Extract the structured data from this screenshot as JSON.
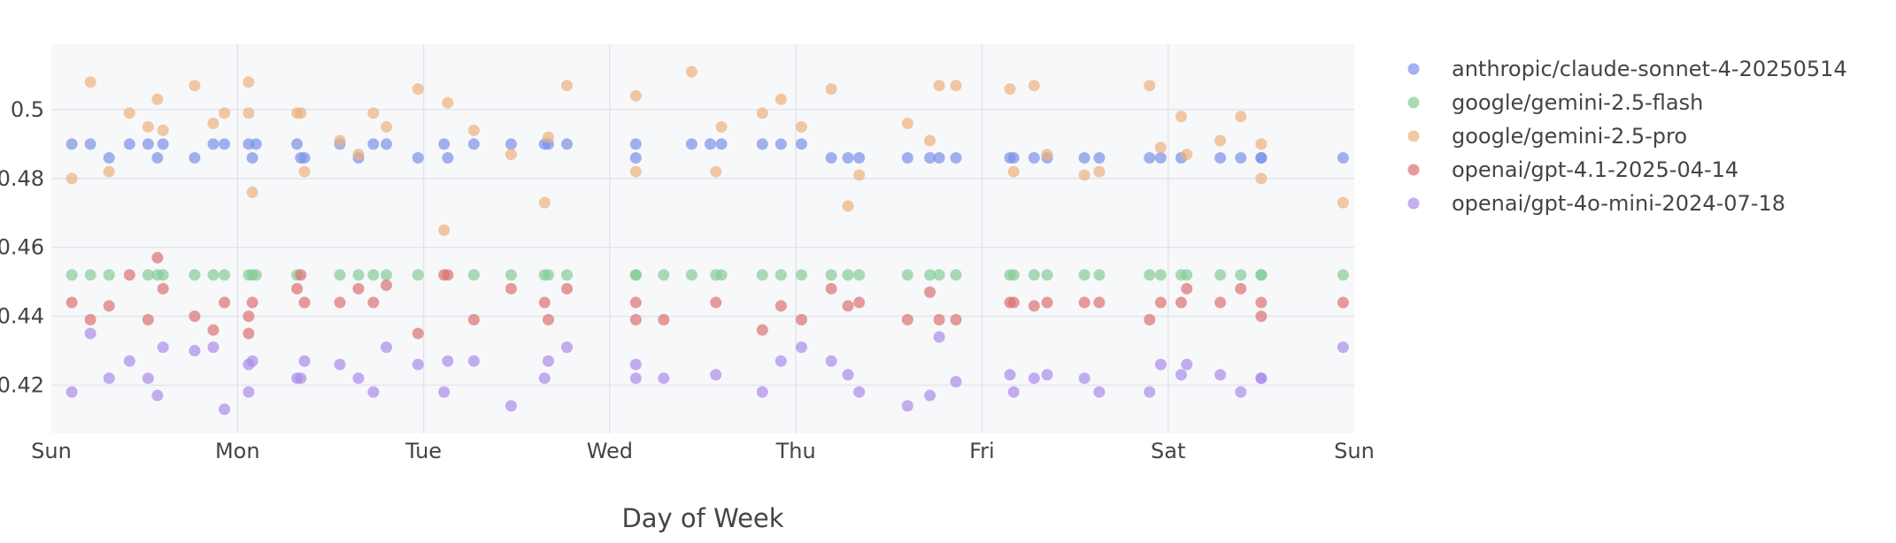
{
  "chart_data": {
    "type": "scatter",
    "xlabel": "Day of Week",
    "ylabel": "",
    "x_tick_labels": [
      "Sun",
      "Mon",
      "Tue",
      "Wed",
      "Thu",
      "Fri",
      "Sat",
      "Sun"
    ],
    "x_range": [
      0,
      7
    ],
    "y_ticks": [
      0.42,
      0.44,
      0.46,
      0.48,
      0.5
    ],
    "y_range": [
      0.406,
      0.519
    ],
    "grid": true,
    "legend_position": "right",
    "series": [
      {
        "name": "anthropic/claude-sonnet-4-20250514",
        "color": "#7b92ea",
        "points": [
          [
            0.11,
            0.49
          ],
          [
            0.21,
            0.49
          ],
          [
            0.31,
            0.486
          ],
          [
            0.42,
            0.49
          ],
          [
            0.52,
            0.49
          ],
          [
            0.57,
            0.486
          ],
          [
            0.6,
            0.49
          ],
          [
            0.77,
            0.486
          ],
          [
            0.87,
            0.49
          ],
          [
            0.93,
            0.49
          ],
          [
            1.06,
            0.49
          ],
          [
            1.08,
            0.486
          ],
          [
            1.1,
            0.49
          ],
          [
            1.32,
            0.49
          ],
          [
            1.34,
            0.486
          ],
          [
            1.36,
            0.486
          ],
          [
            1.55,
            0.49
          ],
          [
            1.65,
            0.486
          ],
          [
            1.73,
            0.49
          ],
          [
            1.8,
            0.49
          ],
          [
            1.97,
            0.486
          ],
          [
            2.11,
            0.49
          ],
          [
            2.13,
            0.486
          ],
          [
            2.27,
            0.49
          ],
          [
            2.47,
            0.49
          ],
          [
            2.65,
            0.49
          ],
          [
            2.67,
            0.49
          ],
          [
            2.77,
            0.49
          ],
          [
            3.14,
            0.486
          ],
          [
            3.14,
            0.49
          ],
          [
            3.44,
            0.49
          ],
          [
            3.54,
            0.49
          ],
          [
            3.6,
            0.49
          ],
          [
            3.82,
            0.49
          ],
          [
            3.92,
            0.49
          ],
          [
            4.03,
            0.49
          ],
          [
            4.19,
            0.486
          ],
          [
            4.28,
            0.486
          ],
          [
            4.34,
            0.486
          ],
          [
            4.6,
            0.486
          ],
          [
            4.72,
            0.486
          ],
          [
            4.77,
            0.486
          ],
          [
            4.86,
            0.486
          ],
          [
            5.15,
            0.486
          ],
          [
            5.17,
            0.486
          ],
          [
            5.28,
            0.486
          ],
          [
            5.35,
            0.486
          ],
          [
            5.55,
            0.486
          ],
          [
            5.63,
            0.486
          ],
          [
            5.9,
            0.486
          ],
          [
            5.96,
            0.486
          ],
          [
            6.07,
            0.486
          ],
          [
            6.28,
            0.486
          ],
          [
            6.39,
            0.486
          ],
          [
            6.5,
            0.486
          ],
          [
            6.5,
            0.486
          ],
          [
            6.94,
            0.486
          ]
        ]
      },
      {
        "name": "google/gemini-2.5-flash",
        "color": "#86cc96",
        "points": [
          [
            0.11,
            0.452
          ],
          [
            0.21,
            0.452
          ],
          [
            0.31,
            0.452
          ],
          [
            0.52,
            0.452
          ],
          [
            0.57,
            0.452
          ],
          [
            0.6,
            0.452
          ],
          [
            0.77,
            0.452
          ],
          [
            0.87,
            0.452
          ],
          [
            0.93,
            0.452
          ],
          [
            1.06,
            0.452
          ],
          [
            1.08,
            0.452
          ],
          [
            1.1,
            0.452
          ],
          [
            1.32,
            0.452
          ],
          [
            1.55,
            0.452
          ],
          [
            1.65,
            0.452
          ],
          [
            1.73,
            0.452
          ],
          [
            1.8,
            0.452
          ],
          [
            1.97,
            0.452
          ],
          [
            2.27,
            0.452
          ],
          [
            2.47,
            0.452
          ],
          [
            2.65,
            0.452
          ],
          [
            2.67,
            0.452
          ],
          [
            2.77,
            0.452
          ],
          [
            3.14,
            0.452
          ],
          [
            3.14,
            0.452
          ],
          [
            3.29,
            0.452
          ],
          [
            3.44,
            0.452
          ],
          [
            3.57,
            0.452
          ],
          [
            3.6,
            0.452
          ],
          [
            3.82,
            0.452
          ],
          [
            3.92,
            0.452
          ],
          [
            4.03,
            0.452
          ],
          [
            4.19,
            0.452
          ],
          [
            4.28,
            0.452
          ],
          [
            4.34,
            0.452
          ],
          [
            4.6,
            0.452
          ],
          [
            4.72,
            0.452
          ],
          [
            4.77,
            0.452
          ],
          [
            4.86,
            0.452
          ],
          [
            5.15,
            0.452
          ],
          [
            5.17,
            0.452
          ],
          [
            5.28,
            0.452
          ],
          [
            5.35,
            0.452
          ],
          [
            5.55,
            0.452
          ],
          [
            5.63,
            0.452
          ],
          [
            5.9,
            0.452
          ],
          [
            5.96,
            0.452
          ],
          [
            6.07,
            0.452
          ],
          [
            6.1,
            0.452
          ],
          [
            6.28,
            0.452
          ],
          [
            6.39,
            0.452
          ],
          [
            6.5,
            0.452
          ],
          [
            6.5,
            0.452
          ],
          [
            6.94,
            0.452
          ]
        ]
      },
      {
        "name": "google/gemini-2.5-pro",
        "color": "#ecb07e",
        "points": [
          [
            0.11,
            0.48
          ],
          [
            0.21,
            0.508
          ],
          [
            0.31,
            0.482
          ],
          [
            0.42,
            0.499
          ],
          [
            0.52,
            0.495
          ],
          [
            0.57,
            0.503
          ],
          [
            0.6,
            0.494
          ],
          [
            0.77,
            0.507
          ],
          [
            0.87,
            0.496
          ],
          [
            0.93,
            0.499
          ],
          [
            1.06,
            0.508
          ],
          [
            1.06,
            0.499
          ],
          [
            1.08,
            0.476
          ],
          [
            1.32,
            0.499
          ],
          [
            1.34,
            0.499
          ],
          [
            1.36,
            0.482
          ],
          [
            1.55,
            0.491
          ],
          [
            1.65,
            0.487
          ],
          [
            1.73,
            0.499
          ],
          [
            1.8,
            0.495
          ],
          [
            1.97,
            0.506
          ],
          [
            2.11,
            0.465
          ],
          [
            2.13,
            0.502
          ],
          [
            2.27,
            0.494
          ],
          [
            2.47,
            0.487
          ],
          [
            2.65,
            0.473
          ],
          [
            2.67,
            0.492
          ],
          [
            2.77,
            0.507
          ],
          [
            3.14,
            0.504
          ],
          [
            3.14,
            0.482
          ],
          [
            3.44,
            0.511
          ],
          [
            3.57,
            0.482
          ],
          [
            3.6,
            0.495
          ],
          [
            3.82,
            0.499
          ],
          [
            3.92,
            0.503
          ],
          [
            4.03,
            0.495
          ],
          [
            4.19,
            0.506
          ],
          [
            4.28,
            0.472
          ],
          [
            4.34,
            0.481
          ],
          [
            4.6,
            0.496
          ],
          [
            4.72,
            0.491
          ],
          [
            4.77,
            0.507
          ],
          [
            4.86,
            0.507
          ],
          [
            5.15,
            0.506
          ],
          [
            5.17,
            0.482
          ],
          [
            5.28,
            0.507
          ],
          [
            5.35,
            0.487
          ],
          [
            5.55,
            0.481
          ],
          [
            5.63,
            0.482
          ],
          [
            5.9,
            0.507
          ],
          [
            5.96,
            0.489
          ],
          [
            6.07,
            0.498
          ],
          [
            6.1,
            0.487
          ],
          [
            6.28,
            0.491
          ],
          [
            6.39,
            0.498
          ],
          [
            6.5,
            0.49
          ],
          [
            6.5,
            0.48
          ],
          [
            6.94,
            0.473
          ]
        ]
      },
      {
        "name": "openai/gpt-4.1-2025-04-14",
        "color": "#dc7070",
        "points": [
          [
            0.11,
            0.444
          ],
          [
            0.21,
            0.439
          ],
          [
            0.31,
            0.443
          ],
          [
            0.42,
            0.452
          ],
          [
            0.52,
            0.439
          ],
          [
            0.57,
            0.457
          ],
          [
            0.6,
            0.448
          ],
          [
            0.77,
            0.44
          ],
          [
            0.87,
            0.436
          ],
          [
            0.93,
            0.444
          ],
          [
            1.06,
            0.44
          ],
          [
            1.06,
            0.435
          ],
          [
            1.08,
            0.444
          ],
          [
            1.32,
            0.448
          ],
          [
            1.34,
            0.452
          ],
          [
            1.36,
            0.444
          ],
          [
            1.55,
            0.444
          ],
          [
            1.65,
            0.448
          ],
          [
            1.73,
            0.444
          ],
          [
            1.8,
            0.449
          ],
          [
            1.97,
            0.435
          ],
          [
            2.11,
            0.452
          ],
          [
            2.13,
            0.452
          ],
          [
            2.27,
            0.439
          ],
          [
            2.47,
            0.448
          ],
          [
            2.65,
            0.444
          ],
          [
            2.67,
            0.439
          ],
          [
            2.77,
            0.448
          ],
          [
            3.14,
            0.444
          ],
          [
            3.14,
            0.439
          ],
          [
            3.29,
            0.439
          ],
          [
            3.57,
            0.444
          ],
          [
            3.82,
            0.436
          ],
          [
            3.92,
            0.443
          ],
          [
            4.03,
            0.439
          ],
          [
            4.19,
            0.448
          ],
          [
            4.28,
            0.443
          ],
          [
            4.34,
            0.444
          ],
          [
            4.6,
            0.439
          ],
          [
            4.72,
            0.447
          ],
          [
            4.77,
            0.439
          ],
          [
            4.86,
            0.439
          ],
          [
            5.15,
            0.444
          ],
          [
            5.17,
            0.444
          ],
          [
            5.28,
            0.443
          ],
          [
            5.35,
            0.444
          ],
          [
            5.55,
            0.444
          ],
          [
            5.63,
            0.444
          ],
          [
            5.9,
            0.439
          ],
          [
            5.96,
            0.444
          ],
          [
            6.07,
            0.444
          ],
          [
            6.1,
            0.448
          ],
          [
            6.28,
            0.444
          ],
          [
            6.39,
            0.448
          ],
          [
            6.5,
            0.444
          ],
          [
            6.5,
            0.44
          ],
          [
            6.94,
            0.444
          ]
        ]
      },
      {
        "name": "openai/gpt-4o-mini-2024-07-18",
        "color": "#a98cea",
        "points": [
          [
            0.11,
            0.418
          ],
          [
            0.21,
            0.435
          ],
          [
            0.31,
            0.422
          ],
          [
            0.42,
            0.427
          ],
          [
            0.52,
            0.422
          ],
          [
            0.57,
            0.417
          ],
          [
            0.6,
            0.431
          ],
          [
            0.77,
            0.43
          ],
          [
            0.87,
            0.431
          ],
          [
            0.93,
            0.413
          ],
          [
            1.06,
            0.426
          ],
          [
            1.08,
            0.427
          ],
          [
            1.06,
            0.418
          ],
          [
            1.32,
            0.422
          ],
          [
            1.34,
            0.422
          ],
          [
            1.36,
            0.427
          ],
          [
            1.55,
            0.426
          ],
          [
            1.65,
            0.422
          ],
          [
            1.73,
            0.418
          ],
          [
            1.8,
            0.431
          ],
          [
            1.97,
            0.426
          ],
          [
            2.11,
            0.418
          ],
          [
            2.13,
            0.427
          ],
          [
            2.27,
            0.427
          ],
          [
            2.47,
            0.414
          ],
          [
            2.65,
            0.422
          ],
          [
            2.67,
            0.427
          ],
          [
            2.77,
            0.431
          ],
          [
            3.14,
            0.426
          ],
          [
            3.14,
            0.422
          ],
          [
            3.29,
            0.422
          ],
          [
            3.57,
            0.423
          ],
          [
            3.82,
            0.418
          ],
          [
            3.92,
            0.427
          ],
          [
            4.03,
            0.431
          ],
          [
            4.19,
            0.427
          ],
          [
            4.28,
            0.423
          ],
          [
            4.34,
            0.418
          ],
          [
            4.6,
            0.414
          ],
          [
            4.72,
            0.417
          ],
          [
            4.77,
            0.434
          ],
          [
            4.86,
            0.421
          ],
          [
            5.15,
            0.423
          ],
          [
            5.17,
            0.418
          ],
          [
            5.28,
            0.422
          ],
          [
            5.35,
            0.423
          ],
          [
            5.55,
            0.422
          ],
          [
            5.63,
            0.418
          ],
          [
            5.9,
            0.418
          ],
          [
            5.96,
            0.426
          ],
          [
            6.07,
            0.423
          ],
          [
            6.1,
            0.426
          ],
          [
            6.28,
            0.423
          ],
          [
            6.39,
            0.418
          ],
          [
            6.5,
            0.422
          ],
          [
            6.5,
            0.422
          ],
          [
            6.94,
            0.431
          ]
        ]
      }
    ]
  }
}
